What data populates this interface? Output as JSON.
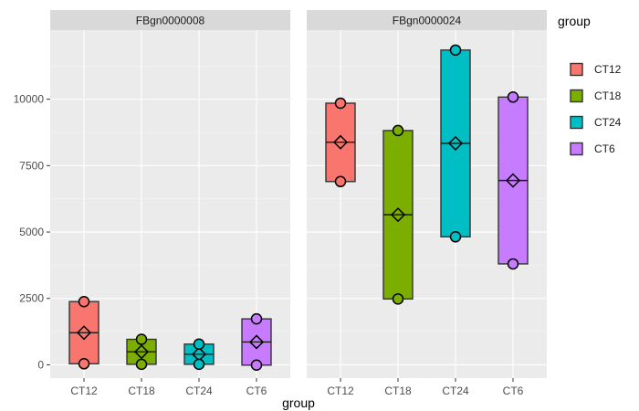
{
  "chart_data": {
    "type": "box",
    "facet_by": "gene",
    "facets": [
      "FBgn0000008",
      "FBgn0000024"
    ],
    "categories": [
      "CT12",
      "CT18",
      "CT24",
      "CT6"
    ],
    "xlabel": "group",
    "ylabel": "",
    "ylim": [
      -500,
      12600
    ],
    "y_ticks": [
      0,
      2500,
      5000,
      7500,
      10000
    ],
    "y_tick_labels": [
      "0",
      "2500",
      "5000",
      "7500",
      "10000"
    ],
    "grid": true,
    "legend": {
      "title": "group",
      "position": "right",
      "entries": [
        "CT12",
        "CT18",
        "CT24",
        "CT6"
      ]
    },
    "colors": {
      "CT12": "#F8766D",
      "CT18": "#7CAE00",
      "CT24": "#00BFC4",
      "CT6": "#C77CFF"
    },
    "series": [
      {
        "facet": "FBgn0000008",
        "boxes": [
          {
            "group": "CT12",
            "low": 40,
            "high": 2380,
            "median": 1210,
            "mean": 1210,
            "points": [
              2380,
              40
            ]
          },
          {
            "group": "CT18",
            "low": 20,
            "high": 960,
            "median": 490,
            "mean": 490,
            "points": [
              960,
              20
            ]
          },
          {
            "group": "CT24",
            "low": 20,
            "high": 780,
            "median": 400,
            "mean": 400,
            "points": [
              780,
              20
            ]
          },
          {
            "group": "CT6",
            "low": -10,
            "high": 1730,
            "median": 860,
            "mean": 860,
            "points": [
              1730,
              -10
            ]
          }
        ]
      },
      {
        "facet": "FBgn0000024",
        "boxes": [
          {
            "group": "CT12",
            "low": 6900,
            "high": 9850,
            "median": 8380,
            "mean": 8380,
            "points": [
              9850,
              6900
            ]
          },
          {
            "group": "CT18",
            "low": 2480,
            "high": 8820,
            "median": 5650,
            "mean": 5650,
            "points": [
              8820,
              2480
            ]
          },
          {
            "group": "CT24",
            "low": 4820,
            "high": 11850,
            "median": 8340,
            "mean": 8340,
            "points": [
              11850,
              4820
            ]
          },
          {
            "group": "CT6",
            "low": 3800,
            "high": 10080,
            "median": 6940,
            "mean": 6940,
            "points": [
              10080,
              3800
            ]
          }
        ]
      }
    ]
  }
}
